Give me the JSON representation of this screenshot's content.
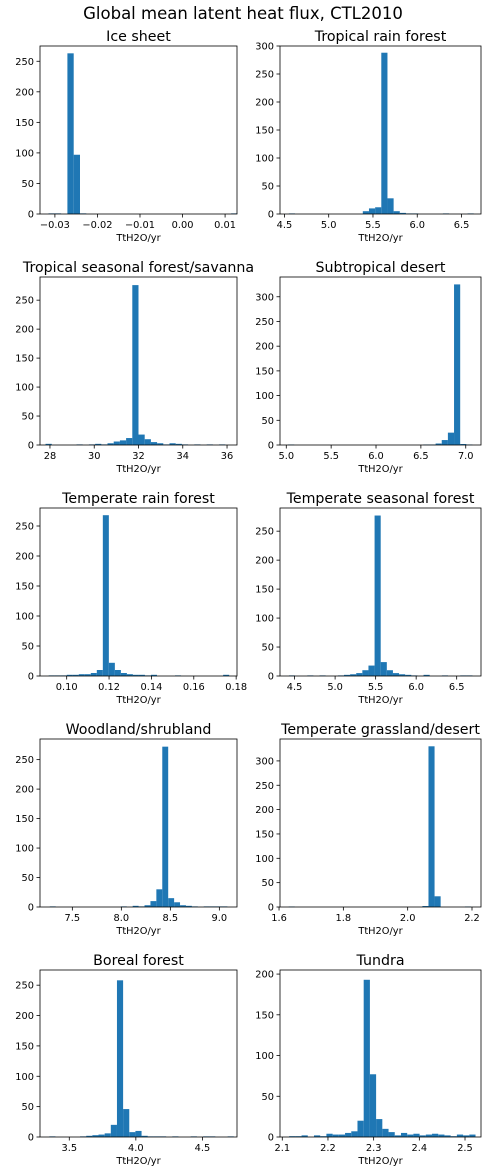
{
  "title": "Global mean latent heat flux, CTL2010",
  "colors": {
    "bar": "#1f77b4",
    "axis": "#000000",
    "background": "#ffffff"
  },
  "chart_data": [
    {
      "type": "bar",
      "title": "Ice sheet",
      "xlabel": "TtH2O/yr",
      "ylabel": "",
      "xlim": [
        -0.0335,
        0.0128
      ],
      "ylim": [
        0,
        275
      ],
      "xticks": [
        -0.03,
        -0.02,
        -0.01,
        0.0,
        0.01
      ],
      "xtick_labels": [
        "−0.03",
        "−0.02",
        "−0.01",
        "0.00",
        "0.01"
      ],
      "yticks": [
        0,
        50,
        100,
        150,
        200,
        250
      ],
      "bins": {
        "start": -0.0315,
        "width": 0.00148
      },
      "values": [
        1,
        1,
        0,
        263,
        97,
        1,
        0,
        0,
        0,
        0,
        0,
        0,
        0,
        0,
        0,
        0,
        0,
        0,
        0,
        0,
        0,
        0,
        0,
        0,
        0,
        0,
        0,
        0,
        0,
        1
      ]
    },
    {
      "type": "bar",
      "title": "Tropical rain forest",
      "xlabel": "TtH2O/yr",
      "ylabel": "",
      "xlim": [
        4.45,
        6.72
      ],
      "ylim": [
        0,
        300
      ],
      "xticks": [
        4.5,
        5.0,
        5.5,
        6.0,
        6.5
      ],
      "xtick_labels": [
        "4.5",
        "5.0",
        "5.5",
        "6.0",
        "6.5"
      ],
      "yticks": [
        0,
        50,
        100,
        150,
        200,
        250,
        300
      ],
      "bins": {
        "start": 4.55,
        "width": 0.0696
      },
      "values": [
        1,
        0,
        0,
        0,
        0,
        0,
        0,
        0,
        0,
        0,
        0,
        0,
        5,
        10,
        12,
        288,
        28,
        5,
        2,
        1,
        1,
        0,
        0,
        0,
        0,
        1,
        0,
        0,
        0,
        1
      ]
    },
    {
      "type": "bar",
      "title": "Tropical seasonal forest/savanna",
      "xlabel": "TtH2O/yr",
      "ylabel": "",
      "xlim": [
        27.55,
        36.45
      ],
      "ylim": [
        0,
        290
      ],
      "xticks": [
        28,
        30,
        32,
        34,
        36
      ],
      "xtick_labels": [
        "28",
        "30",
        "32",
        "34",
        "36"
      ],
      "yticks": [
        0,
        50,
        100,
        150,
        200,
        250
      ],
      "bins": {
        "start": 27.8,
        "width": 0.28
      },
      "values": [
        2,
        0,
        0,
        0,
        0,
        1,
        0,
        1,
        2,
        1,
        3,
        6,
        8,
        12,
        276,
        18,
        10,
        5,
        3,
        1,
        3,
        2,
        1,
        0,
        1,
        0,
        1,
        0,
        1,
        0
      ]
    },
    {
      "type": "bar",
      "title": "Subtropical desert",
      "xlabel": "TtH2O/yr",
      "ylabel": "",
      "xlim": [
        4.93,
        7.17
      ],
      "ylim": [
        0,
        340
      ],
      "xticks": [
        5.0,
        5.5,
        6.0,
        6.5,
        7.0
      ],
      "xtick_labels": [
        "5.0",
        "5.5",
        "6.0",
        "6.5",
        "7.0"
      ],
      "yticks": [
        0,
        50,
        100,
        150,
        200,
        250,
        300
      ],
      "bins": {
        "start": 5.02,
        "width": 0.0685
      },
      "values": [
        1,
        0,
        0,
        0,
        0,
        0,
        0,
        0,
        0,
        0,
        0,
        0,
        0,
        0,
        0,
        0,
        0,
        0,
        0,
        0,
        0,
        0,
        1,
        1,
        3,
        10,
        25,
        325,
        2,
        1
      ]
    },
    {
      "type": "bar",
      "title": "Temperate rain forest",
      "xlabel": "TtH2O/yr",
      "ylabel": "",
      "xlim": [
        0.0874,
        0.1804
      ],
      "ylim": [
        0,
        280
      ],
      "xticks": [
        0.1,
        0.12,
        0.14,
        0.16,
        0.18
      ],
      "xtick_labels": [
        "0.10",
        "0.12",
        "0.14",
        "0.16",
        "0.18"
      ],
      "yticks": [
        0,
        50,
        100,
        150,
        200,
        250
      ],
      "bins": {
        "start": 0.0915,
        "width": 0.00284
      },
      "values": [
        1,
        1,
        1,
        2,
        2,
        3,
        3,
        5,
        10,
        268,
        22,
        10,
        5,
        3,
        2,
        2,
        1,
        2,
        0,
        0,
        0,
        1,
        0,
        0,
        0,
        0,
        0,
        0,
        0,
        2
      ]
    },
    {
      "type": "bar",
      "title": "Temperate seasonal forest",
      "xlabel": "TtH2O/yr",
      "ylabel": "",
      "xlim": [
        4.32,
        6.8
      ],
      "ylim": [
        0,
        290
      ],
      "xticks": [
        4.5,
        5.0,
        5.5,
        6.0,
        6.5
      ],
      "xtick_labels": [
        "4.5",
        "5.0",
        "5.5",
        "6.0",
        "6.5"
      ],
      "yticks": [
        0,
        50,
        100,
        150,
        200,
        250
      ],
      "bins": {
        "start": 4.43,
        "width": 0.0755
      },
      "values": [
        1,
        0,
        0,
        1,
        0,
        1,
        0,
        0,
        1,
        2,
        3,
        5,
        10,
        18,
        277,
        24,
        10,
        5,
        3,
        2,
        1,
        0,
        2,
        0,
        0,
        1,
        0,
        0,
        1,
        1
      ]
    },
    {
      "type": "bar",
      "title": "Woodland/shrubland",
      "xlabel": "TtH2O/yr",
      "ylabel": "",
      "xlim": [
        7.17,
        9.18
      ],
      "ylim": [
        0,
        285
      ],
      "xticks": [
        7.5,
        8.0,
        8.5,
        9.0
      ],
      "xtick_labels": [
        "7.5",
        "8.0",
        "8.5",
        "9.0"
      ],
      "yticks": [
        0,
        50,
        100,
        150,
        200,
        250
      ],
      "bins": {
        "start": 7.27,
        "width": 0.0604
      },
      "values": [
        1,
        0,
        0,
        0,
        0,
        0,
        0,
        0,
        0,
        0,
        0,
        0,
        1,
        0,
        2,
        1,
        3,
        10,
        30,
        272,
        15,
        8,
        3,
        2,
        1,
        0,
        1,
        1,
        1,
        1
      ]
    },
    {
      "type": "bar",
      "title": "Temperate grassland/desert",
      "xlabel": "TtH2O/yr",
      "ylabel": "",
      "xlim": [
        1.603,
        2.228
      ],
      "ylim": [
        0,
        345
      ],
      "xticks": [
        1.6,
        1.8,
        2.0,
        2.2
      ],
      "xtick_labels": [
        "1.6",
        "1.8",
        "2.0",
        "2.2"
      ],
      "yticks": [
        0,
        50,
        100,
        150,
        200,
        250,
        300
      ],
      "bins": {
        "start": 1.63,
        "width": 0.0189
      },
      "values": [
        1,
        0,
        0,
        0,
        0,
        0,
        0,
        0,
        0,
        0,
        0,
        0,
        0,
        0,
        0,
        0,
        0,
        0,
        0,
        0,
        0,
        0,
        2,
        330,
        22,
        0,
        0,
        0,
        0,
        1
      ]
    },
    {
      "type": "bar",
      "title": "Boreal forest",
      "xlabel": "TtH2O/yr",
      "ylabel": "",
      "xlim": [
        3.28,
        4.76
      ],
      "ylim": [
        0,
        275
      ],
      "xticks": [
        3.5,
        4.0,
        4.5
      ],
      "xtick_labels": [
        "3.5",
        "4.0",
        "4.5"
      ],
      "yticks": [
        0,
        50,
        100,
        150,
        200,
        250
      ],
      "bins": {
        "start": 3.35,
        "width": 0.0462
      },
      "values": [
        1,
        0,
        0,
        0,
        0,
        1,
        2,
        3,
        4,
        6,
        20,
        258,
        46,
        8,
        10,
        2,
        1,
        1,
        1,
        0,
        1,
        0,
        0,
        1,
        0,
        1,
        1,
        0,
        0,
        1
      ]
    },
    {
      "type": "bar",
      "title": "Tundra",
      "xlabel": "TtH2O/yr",
      "ylabel": "",
      "xlim": [
        2.095,
        2.535
      ],
      "ylim": [
        0,
        205
      ],
      "xticks": [
        2.1,
        2.2,
        2.3,
        2.4,
        2.5
      ],
      "xtick_labels": [
        "2.1",
        "2.2",
        "2.3",
        "2.4",
        "2.5"
      ],
      "yticks": [
        0,
        50,
        100,
        150,
        200
      ],
      "bins": {
        "start": 2.115,
        "width": 0.0136
      },
      "values": [
        1,
        1,
        2,
        0,
        2,
        1,
        4,
        3,
        3,
        5,
        7,
        20,
        193,
        77,
        22,
        10,
        6,
        2,
        5,
        3,
        4,
        2,
        3,
        4,
        3,
        2,
        1,
        3,
        2,
        3
      ]
    }
  ]
}
